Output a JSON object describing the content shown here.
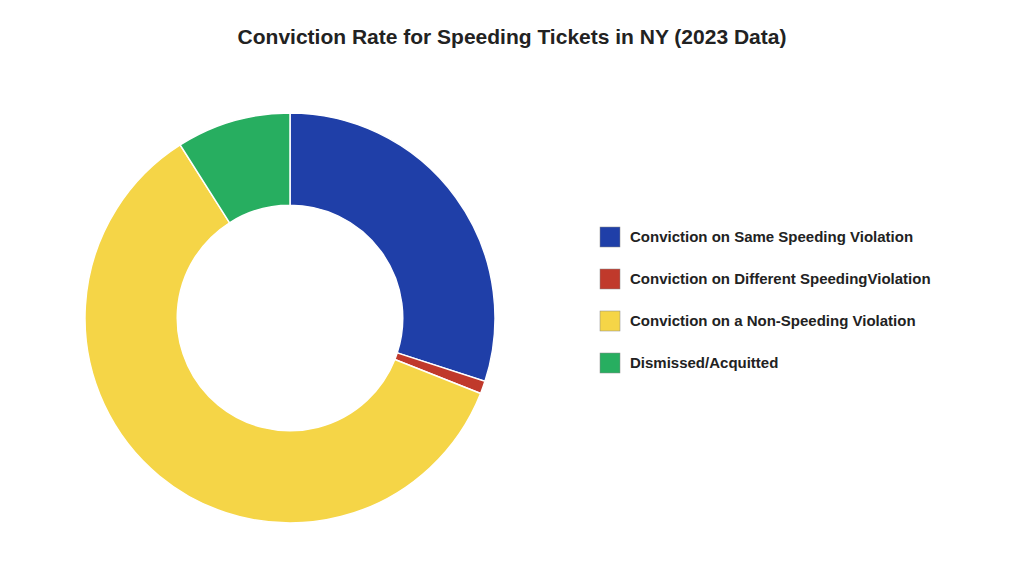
{
  "chart_data": {
    "type": "donut",
    "title": "Conviction Rate for Speeding Tickets in NY (2023 Data)",
    "categories": [
      "Conviction on Same Speeding Violation",
      "Conviction on Different SpeedingViolation",
      "Conviction on a Non-Speeding Violation",
      "Dismissed/Acquitted"
    ],
    "values": [
      30,
      1,
      60,
      9
    ],
    "colors": [
      "#1f3fa8",
      "#c0392b",
      "#f5d547",
      "#27ae60"
    ],
    "legend": "right"
  }
}
